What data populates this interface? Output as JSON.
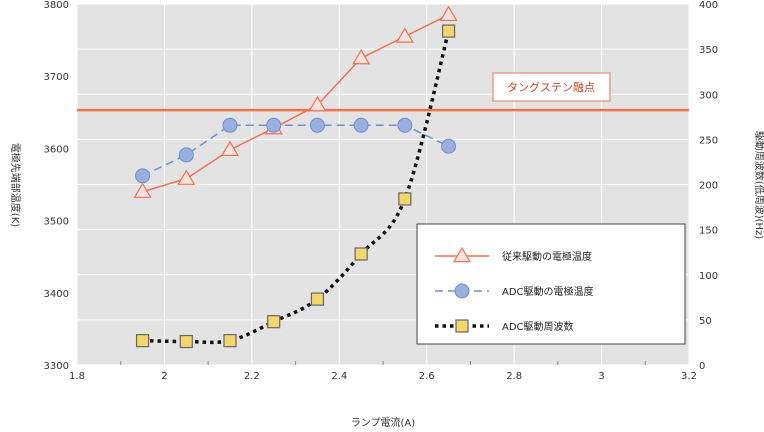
{
  "chart_data": {
    "type": "line",
    "xlabel": "ランプ電流(A)",
    "ylabel": "電極先端部温度(K)",
    "y2label": "駆動周波数(低周波)(Hz)",
    "xlim": [
      1.8,
      3.2
    ],
    "ylim": [
      3300,
      3800
    ],
    "y2lim": [
      0,
      400
    ],
    "xticks": [
      "1.8",
      "2",
      "2.2",
      "2.4",
      "2.6",
      "2.8",
      "3",
      "3.2"
    ],
    "yticks": [
      "3300",
      "3400",
      "3500",
      "3600",
      "3700",
      "3800"
    ],
    "y2ticks": [
      "0",
      "50",
      "100",
      "150",
      "200",
      "250",
      "300",
      "350",
      "400"
    ],
    "grid": true,
    "legend_position": "bottom-right",
    "reference_line": {
      "label": "タングステン融点",
      "y": 3653,
      "color": "#f07050"
    },
    "series": [
      {
        "name": "従来駆動の電極温度",
        "axis": "left",
        "marker": "triangle",
        "line": "solid",
        "color": "#f07050",
        "x": [
          1.95,
          2.05,
          2.15,
          2.25,
          2.35,
          2.45,
          2.55,
          2.65
        ],
        "y": [
          3540,
          3558,
          3598,
          3628,
          3660,
          3725,
          3755,
          3785
        ]
      },
      {
        "name": "ADC駆動の電極温度",
        "axis": "left",
        "marker": "circle",
        "line": "dashed",
        "color": "#6f8fd0",
        "x": [
          1.95,
          2.05,
          2.15,
          2.25,
          2.35,
          2.45,
          2.55,
          2.65
        ],
        "y": [
          3562,
          3591,
          3632,
          3632,
          3632,
          3632,
          3632,
          3603
        ]
      },
      {
        "name": "ADC駆動周波数",
        "axis": "right",
        "marker": "square",
        "line": "dotted",
        "color": "#111111",
        "x": [
          1.95,
          2.05,
          2.15,
          2.25,
          2.35,
          2.45,
          2.55,
          2.65
        ],
        "y": [
          27,
          26,
          27,
          48,
          73,
          123,
          184,
          370
        ]
      }
    ]
  }
}
